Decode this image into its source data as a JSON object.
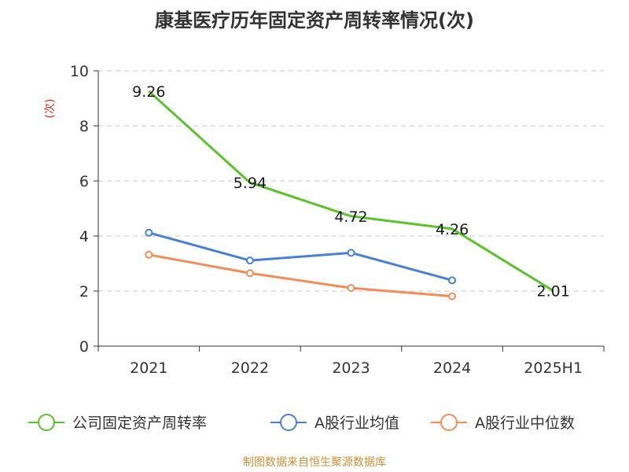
{
  "title": "康基医疗历年固定资产周转率情况(次)",
  "y_unit": "(次)",
  "source": "制图数据来自恒生聚源数据库",
  "colors": {
    "company": "#5ac22a",
    "industry_avg": "#4a7fd8",
    "industry_median": "#f58c58",
    "unit": "#e0261b",
    "source": "#c8913a",
    "grid": "#c8c8c8",
    "axis": "#333333"
  },
  "chart_data": {
    "type": "line",
    "title": "康基医疗历年固定资产周转率情况(次)",
    "ylabel": "(次)",
    "ylim": [
      0,
      10
    ],
    "yticks": [
      0,
      2,
      4,
      6,
      8,
      10
    ],
    "categories": [
      "2021",
      "2022",
      "2023",
      "2024",
      "2025H1"
    ],
    "grid": true,
    "legend_position": "bottom",
    "series": [
      {
        "name": "公司固定资产周转率",
        "values": [
          9.26,
          5.94,
          4.72,
          4.26,
          2.01
        ],
        "data_labels": [
          "9.26",
          "5.94",
          "4.72",
          "4.26",
          "2.01"
        ],
        "color_key": "company",
        "markers": false
      },
      {
        "name": "A股行业均值",
        "values": [
          4.12,
          3.11,
          3.39,
          2.39,
          null
        ],
        "color_key": "industry_avg",
        "markers": true
      },
      {
        "name": "A股行业中位数",
        "values": [
          3.32,
          2.65,
          2.11,
          1.81,
          null
        ],
        "color_key": "industry_median",
        "markers": true
      }
    ]
  }
}
